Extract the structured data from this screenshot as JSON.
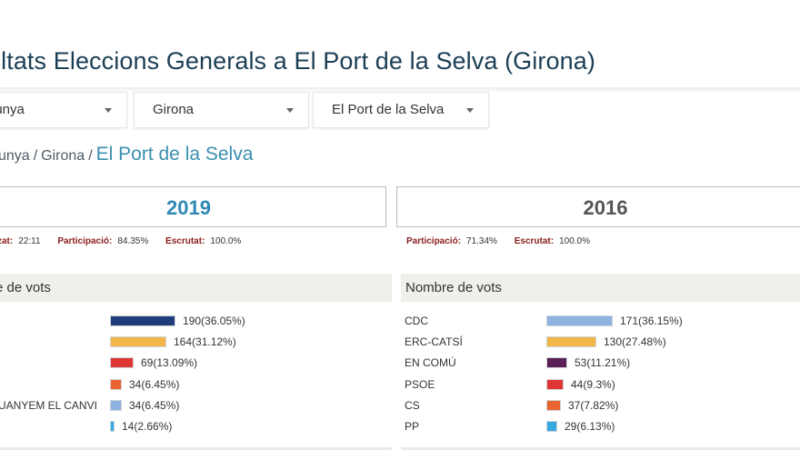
{
  "page": {
    "title": "ultats Eleccions Generals a El Port de la Selva (Girona)"
  },
  "filters": [
    {
      "value": "lunya"
    },
    {
      "value": "Girona"
    },
    {
      "value": "El Port de la Selva"
    }
  ],
  "breadcrumb": {
    "level1": "unya",
    "level2": "Girona",
    "current": "El Port de la Selva",
    "separator": "/"
  },
  "panels": [
    {
      "year": "2019",
      "stats": [
        {
          "label": "zat:",
          "value": "22:11"
        },
        {
          "label": "Participació:",
          "value": "84.35%"
        },
        {
          "label": "Escrutat:",
          "value": "100.0%"
        }
      ],
      "votes_title": "re de vots",
      "rows": [
        {
          "party": "",
          "votes": 190,
          "pct": 36.05,
          "text": "190(36.05%)",
          "color": "#1f3d7a"
        },
        {
          "party": "",
          "votes": 164,
          "pct": 31.12,
          "text": "164(31.12%)",
          "color": "#f2b54a"
        },
        {
          "party": "",
          "votes": 69,
          "pct": 13.09,
          "text": "69(13.09%)",
          "color": "#e03535"
        },
        {
          "party": "",
          "votes": 34,
          "pct": 6.45,
          "text": "34(6.45%)",
          "color": "#e8632d"
        },
        {
          "party": "UANYEM EL CANVI",
          "votes": 34,
          "pct": 6.45,
          "text": "34(6.45%)",
          "color": "#8fb3e0"
        },
        {
          "party": "",
          "votes": 14,
          "pct": 2.66,
          "text": "14(2.66%)",
          "color": "#33a9e0"
        }
      ]
    },
    {
      "year": "2016",
      "stats": [
        {
          "label": "Participació:",
          "value": "71.34%"
        },
        {
          "label": "Escrutat:",
          "value": "100.0%"
        }
      ],
      "votes_title": "Nombre de vots",
      "rows": [
        {
          "party": "CDC",
          "votes": 171,
          "pct": 36.15,
          "text": "171(36.15%)",
          "color": "#8fb3e0"
        },
        {
          "party": "ERC-CATSÍ",
          "votes": 130,
          "pct": 27.48,
          "text": "130(27.48%)",
          "color": "#f2b54a"
        },
        {
          "party": "EN COMÚ",
          "votes": 53,
          "pct": 11.21,
          "text": "53(11.21%)",
          "color": "#5a1f55"
        },
        {
          "party": "PSOE",
          "votes": 44,
          "pct": 9.3,
          "text": "44(9.3%)",
          "color": "#e03535"
        },
        {
          "party": "CS",
          "votes": 37,
          "pct": 7.82,
          "text": "37(7.82%)",
          "color": "#e8632d"
        },
        {
          "party": "PP",
          "votes": 29,
          "pct": 6.13,
          "text": "29(6.13%)",
          "color": "#33a9e0"
        }
      ]
    }
  ]
}
